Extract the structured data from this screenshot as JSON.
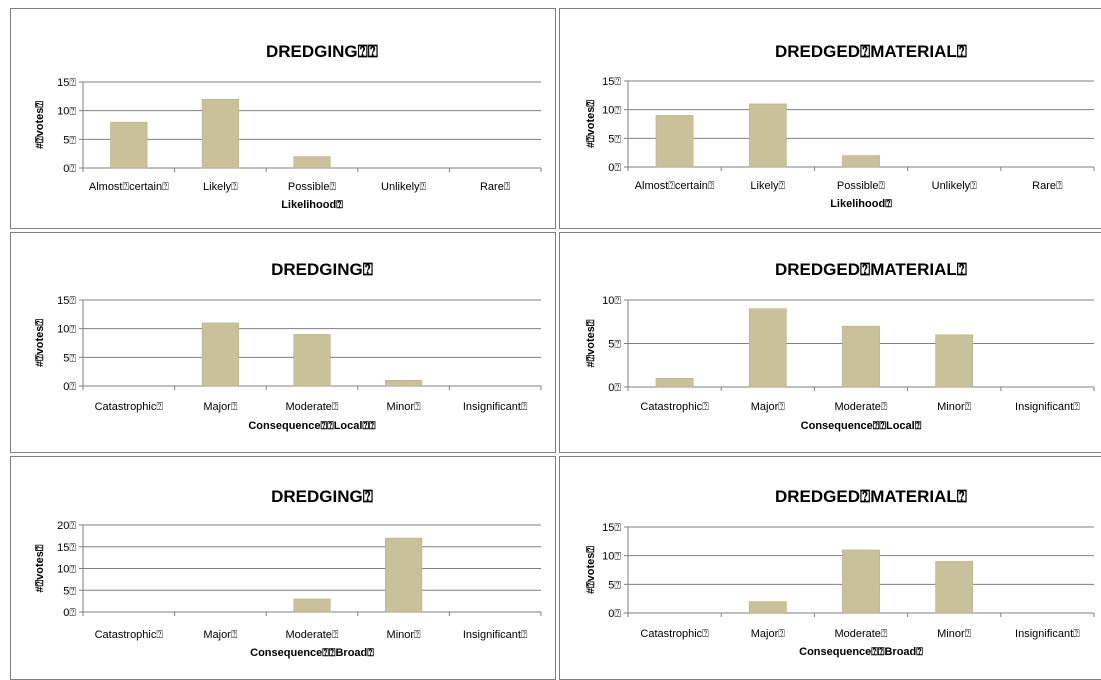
{
  "colors": {
    "bar": "#c8c19a",
    "bar_stroke": "#b3ab83",
    "grid": "#7f7f7f",
    "axis": "#7f7f7f"
  },
  "chart_data": [
    {
      "type": "bar",
      "title": "DREDGING⍰⍰",
      "xlabel": "Likelihood⍰",
      "ylabel": "#⍰votes⍰",
      "categories": [
        "Almost⍰certain⍰",
        "Likely⍰",
        "Possible⍰",
        "Unlikely⍰",
        "Rare⍰"
      ],
      "values": [
        8,
        12,
        2,
        0,
        0
      ],
      "yticks": [
        "0⍰",
        "5⍰",
        "10⍰",
        "15⍰"
      ],
      "ytick_values": [
        0,
        5,
        10,
        15
      ],
      "ylim": [
        0,
        15
      ],
      "grid": true
    },
    {
      "type": "bar",
      "title": "DREDGED⍰MATERIAL⍰",
      "xlabel": "Likelihood⍰",
      "ylabel": "#⍰votes⍰",
      "categories": [
        "Almost⍰certain⍰",
        "Likely⍰",
        "Possible⍰",
        "Unlikely⍰",
        "Rare⍰"
      ],
      "values": [
        9,
        11,
        2,
        0,
        0
      ],
      "yticks": [
        "0⍰",
        "5⍰",
        "10⍰",
        "15⍰"
      ],
      "ytick_values": [
        0,
        5,
        10,
        15
      ],
      "ylim": [
        0,
        15
      ],
      "grid": true
    },
    {
      "type": "bar",
      "title": "DREDGING⍰",
      "xlabel": "Consequence⍰⍰Local⍰⍰",
      "ylabel": "#⍰votes⍰",
      "categories": [
        "Catastrophic⍰",
        "Major⍰",
        "Moderate⍰",
        "Minor⍰",
        "Insignificant⍰"
      ],
      "values": [
        0,
        11,
        9,
        1,
        0
      ],
      "yticks": [
        "0⍰",
        "5⍰",
        "10⍰",
        "15⍰"
      ],
      "ytick_values": [
        0,
        5,
        10,
        15
      ],
      "ylim": [
        0,
        15
      ],
      "grid": true
    },
    {
      "type": "bar",
      "title": "DREDGED⍰MATERIAL⍰",
      "xlabel": "Consequence⍰⍰Local⍰",
      "ylabel": "#⍰votes⍰",
      "categories": [
        "Catastrophic⍰",
        "Major⍰",
        "Moderate⍰",
        "Minor⍰",
        "Insignificant⍰"
      ],
      "values": [
        1,
        9,
        7,
        6,
        0
      ],
      "yticks": [
        "0⍰",
        "5⍰",
        "10⍰"
      ],
      "ytick_values": [
        0,
        5,
        10
      ],
      "ylim": [
        0,
        10
      ],
      "grid": true
    },
    {
      "type": "bar",
      "title": "DREDGING⍰",
      "xlabel": "Consequence⍰⍰Broad⍰",
      "ylabel": "#⍰votes⍰",
      "categories": [
        "Catastrophic⍰",
        "Major⍰",
        "Moderate⍰",
        "Minor⍰",
        "Insignificant⍰"
      ],
      "values": [
        0,
        0,
        3,
        17,
        0
      ],
      "yticks": [
        "0⍰",
        "5⍰",
        "10⍰",
        "15⍰",
        "20⍰"
      ],
      "ytick_values": [
        0,
        5,
        10,
        15,
        20
      ],
      "ylim": [
        0,
        20
      ],
      "grid": true
    },
    {
      "type": "bar",
      "title": "DREDGED⍰MATERIAL⍰",
      "xlabel": "Consequence⍰⍰Broad⍰",
      "ylabel": "#⍰votes⍰",
      "categories": [
        "Catastrophic⍰",
        "Major⍰",
        "Moderate⍰",
        "Minor⍰",
        "Insignificant⍰"
      ],
      "values": [
        0,
        2,
        11,
        9,
        0
      ],
      "yticks": [
        "0⍰",
        "5⍰",
        "10⍰",
        "15⍰"
      ],
      "ytick_values": [
        0,
        5,
        10,
        15
      ],
      "ylim": [
        0,
        15
      ],
      "grid": true
    }
  ]
}
